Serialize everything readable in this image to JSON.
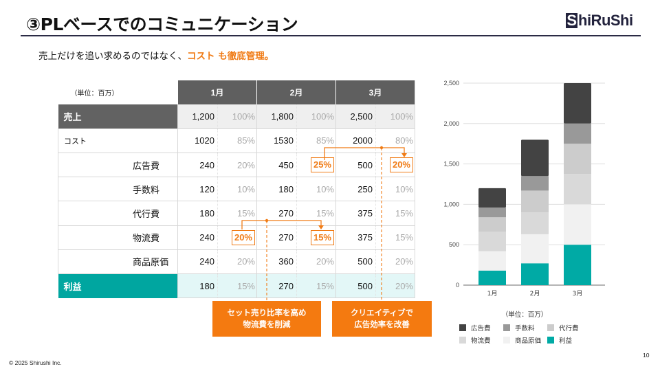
{
  "header": {
    "title": "③PLベースでのコミュニケーション",
    "logo_box_letter": "S",
    "logo_rest": "hiRuShi"
  },
  "subtitle": {
    "text": "売上だけを追い求めるのではなく、",
    "accent": "コスト も徹底管理。"
  },
  "table": {
    "unit_label": "（単位：百万）",
    "months": [
      "1月",
      "2月",
      "3月"
    ],
    "rows": [
      {
        "label": "売上",
        "type": "sales",
        "cells": [
          [
            "1,200",
            "100%"
          ],
          [
            "1,800",
            "100%"
          ],
          [
            "2,500",
            "100%"
          ]
        ]
      },
      {
        "label": "コスト",
        "type": "cost",
        "cells": [
          [
            "1020",
            "85%"
          ],
          [
            "1530",
            "85%"
          ],
          [
            "2000",
            "80%"
          ]
        ]
      },
      {
        "label": "広告費",
        "type": "sub",
        "cells": [
          [
            "240",
            "20%"
          ],
          [
            "450",
            "25%"
          ],
          [
            "500",
            "20%"
          ]
        ],
        "highlight": [
          false,
          true,
          true
        ]
      },
      {
        "label": "手数料",
        "type": "sub",
        "cells": [
          [
            "120",
            "10%"
          ],
          [
            "180",
            "10%"
          ],
          [
            "250",
            "10%"
          ]
        ]
      },
      {
        "label": "代行費",
        "type": "sub",
        "cells": [
          [
            "180",
            "15%"
          ],
          [
            "270",
            "15%"
          ],
          [
            "375",
            "15%"
          ]
        ]
      },
      {
        "label": "物流費",
        "type": "sub",
        "cells": [
          [
            "240",
            "20%"
          ],
          [
            "270",
            "15%"
          ],
          [
            "375",
            "15%"
          ]
        ],
        "highlight": [
          true,
          true,
          false
        ]
      },
      {
        "label": "商品原価",
        "type": "sub",
        "cells": [
          [
            "240",
            "20%"
          ],
          [
            "360",
            "20%"
          ],
          [
            "500",
            "20%"
          ]
        ]
      },
      {
        "label": "利益",
        "type": "profit",
        "cells": [
          [
            "180",
            "15%"
          ],
          [
            "270",
            "15%"
          ],
          [
            "500",
            "20%"
          ]
        ]
      }
    ]
  },
  "callouts": [
    {
      "line1": "セット売り比率を高め",
      "line2": "物流費を削減"
    },
    {
      "line1": "クリエイティブで",
      "line2": "広告効率を改善"
    }
  ],
  "colors": {
    "accent": "#f07b15",
    "callout": "#f47a10",
    "teal": "#00a6a0",
    "header_gray": "#5f5f5f"
  },
  "chart_data": {
    "type": "bar",
    "stacked": true,
    "categories": [
      "1月",
      "2月",
      "3月"
    ],
    "series": [
      {
        "name": "利益",
        "color": "#00aaa5",
        "values": [
          180,
          270,
          500
        ]
      },
      {
        "name": "商品原価",
        "color": "#f1f1f1",
        "values": [
          240,
          360,
          500
        ]
      },
      {
        "name": "物流費",
        "color": "#d9d9d9",
        "values": [
          240,
          270,
          375
        ]
      },
      {
        "name": "代行費",
        "color": "#cccccc",
        "values": [
          180,
          270,
          375
        ]
      },
      {
        "name": "手数料",
        "color": "#999999",
        "values": [
          120,
          180,
          250
        ]
      },
      {
        "name": "広告費",
        "color": "#434343",
        "values": [
          240,
          450,
          500
        ]
      }
    ],
    "yticks": [
      "0",
      "500",
      "1,000",
      "1,500",
      "2,000",
      "2,500"
    ],
    "ytick_values": [
      0,
      500,
      1000,
      1500,
      2000,
      2500
    ],
    "ylim": [
      0,
      2500
    ],
    "grid": true,
    "unit_label": "（単位：百万）",
    "legend_order": [
      "広告費",
      "手数料",
      "代行費",
      "物流費",
      "商品原価",
      "利益"
    ],
    "legend_position": "bottom"
  },
  "footer": {
    "copyright": "© 2025 Shirushi Inc.",
    "page_number": "10"
  }
}
